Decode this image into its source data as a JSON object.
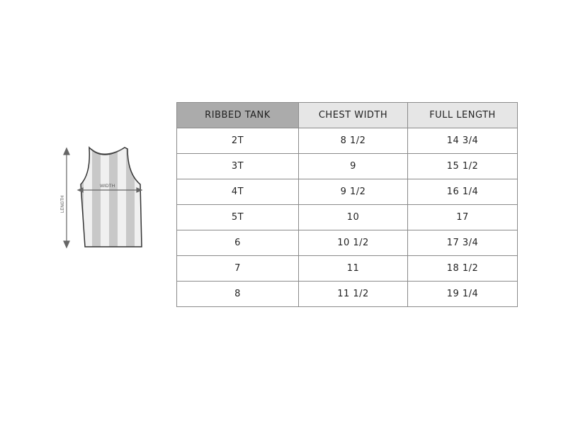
{
  "illustration": {
    "length_label": "LENGTH",
    "width_label": "WIDTH"
  },
  "table": {
    "headers": [
      "RIBBED TANK",
      "CHEST WIDTH",
      "FULL LENGTH"
    ],
    "rows": [
      [
        "2T",
        "8 1/2",
        "14 3/4"
      ],
      [
        "3T",
        "9",
        "15 1/2"
      ],
      [
        "4T",
        "9 1/2",
        "16 1/4"
      ],
      [
        "5T",
        "10",
        "17"
      ],
      [
        "6",
        "10 1/2",
        "17 3/4"
      ],
      [
        "7",
        "11",
        "18 1/2"
      ],
      [
        "8",
        "11 1/2",
        "19 1/4"
      ]
    ]
  },
  "colors": {
    "header_first": "#ababab",
    "header": "#e6e6e6",
    "border": "#8a8a8a"
  }
}
